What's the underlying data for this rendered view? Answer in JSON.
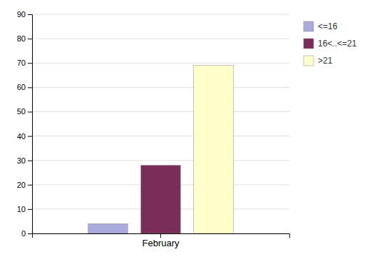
{
  "chart_data": {
    "type": "bar",
    "categories": [
      "February"
    ],
    "series": [
      {
        "name": "<=16",
        "color": "#aaaadd",
        "values": [
          4
        ]
      },
      {
        "name": "16<..<=21",
        "color": "#7b2d5a",
        "values": [
          28
        ]
      },
      {
        "name": ">21",
        "color": "#ffffcc",
        "values": [
          69
        ]
      }
    ],
    "ylim": [
      0,
      90
    ],
    "yticks": [
      0,
      10,
      20,
      30,
      40,
      50,
      60,
      70,
      80,
      90
    ],
    "grid": true,
    "legend": "right"
  }
}
